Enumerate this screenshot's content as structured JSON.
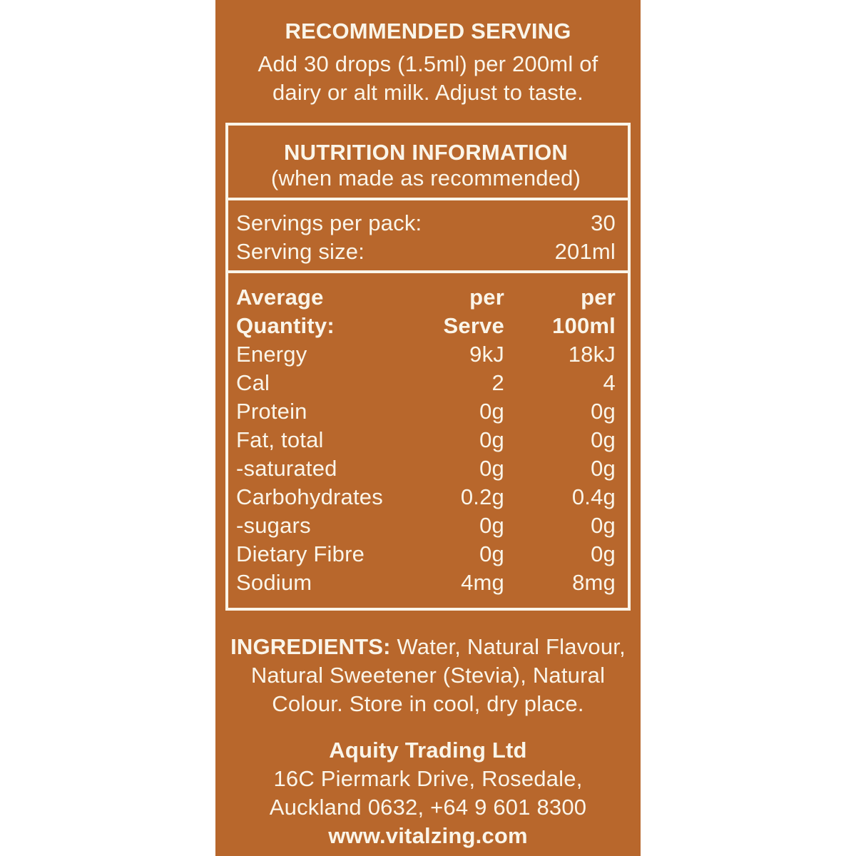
{
  "colors": {
    "panel_bg": "#B8672C",
    "text": "#FAF5E9",
    "page_bg": "#FFFFFF"
  },
  "recommended_serving": {
    "title": "RECOMMENDED SERVING",
    "line1": "Add 30 drops (1.5ml) per 200ml of",
    "line2": "dairy or alt milk. Adjust to taste."
  },
  "nutrition_panel": {
    "title": "NUTRITION INFORMATION",
    "subtitle": "(when made as recommended)",
    "servings_per_pack_label": "Servings per pack:",
    "servings_per_pack_value": "30",
    "serving_size_label": "Serving size:",
    "serving_size_value": "201ml",
    "table": {
      "header": {
        "col1_line1": "Average",
        "col1_line2": "Quantity:",
        "col2_line1": "per",
        "col2_line2": "Serve",
        "col3_line1": "per",
        "col3_line2": "100ml"
      },
      "rows": [
        {
          "label": "Energy",
          "per_serve": "9kJ",
          "per_100ml": "18kJ"
        },
        {
          "label": "Cal",
          "per_serve": "2",
          "per_100ml": "4"
        },
        {
          "label": "Protein",
          "per_serve": "0g",
          "per_100ml": "0g"
        },
        {
          "label": "Fat, total",
          "per_serve": "0g",
          "per_100ml": "0g"
        },
        {
          "label": "-saturated",
          "per_serve": "0g",
          "per_100ml": "0g"
        },
        {
          "label": "Carbohydrates",
          "per_serve": "0.2g",
          "per_100ml": "0.4g"
        },
        {
          "label": "-sugars",
          "per_serve": "0g",
          "per_100ml": "0g"
        },
        {
          "label": "Dietary Fibre",
          "per_serve": "0g",
          "per_100ml": "0g"
        },
        {
          "label": "Sodium",
          "per_serve": "4mg",
          "per_100ml": "8mg"
        }
      ]
    }
  },
  "ingredients": {
    "label": "INGREDIENTS:",
    "line1_rest": " Water, Natural Flavour,",
    "line2": "Natural Sweetener (Stevia), Natural",
    "line3": "Colour. Store in cool, dry place."
  },
  "footer": {
    "company": "Aquity Trading Ltd",
    "address_line1": "16C Piermark Drive, Rosedale,",
    "address_line2": "Auckland 0632, +64 9 601 8300",
    "website": "www.vitalzing.com"
  }
}
